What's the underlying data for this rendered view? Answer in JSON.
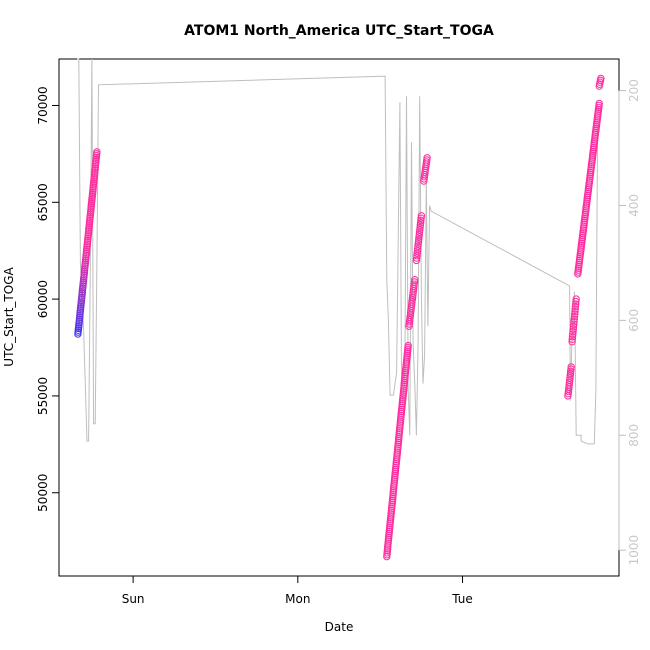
{
  "chart_data": {
    "type": "scatter",
    "title": "ATOM1 North_America UTC_Start_TOGA",
    "xlabel": "Date",
    "ylabel": "UTC_Start_TOGA",
    "x_ticks": [
      "Sun",
      "Mon",
      "Tue"
    ],
    "y_ticks": [
      50000,
      55000,
      60000,
      65000,
      70000
    ],
    "right_ticks": [
      200,
      400,
      600,
      800,
      1000
    ],
    "x_range_days": [
      -0.45,
      2.95
    ],
    "ylim": [
      45700,
      72400
    ],
    "right_ylim": [
      1045,
      145
    ],
    "color_start": "#3f35ee",
    "color_end": "#ff2ea0",
    "right_line_color": "#bebebe",
    "points": [
      {
        "x0": -0.335,
        "y0": 58200,
        "x1": -0.22,
        "y1": 67600,
        "n": 100
      },
      {
        "x0": 1.54,
        "y0": 46700,
        "x1": 1.67,
        "y1": 57600,
        "n": 110
      },
      {
        "x0": 1.675,
        "y0": 58600,
        "x1": 1.71,
        "y1": 61000,
        "n": 22
      },
      {
        "x0": 1.72,
        "y0": 62000,
        "x1": 1.75,
        "y1": 64300,
        "n": 20
      },
      {
        "x0": 1.765,
        "y0": 66100,
        "x1": 1.785,
        "y1": 67300,
        "n": 12
      },
      {
        "x0": 2.64,
        "y0": 55000,
        "x1": 2.66,
        "y1": 56500,
        "n": 14
      },
      {
        "x0": 2.665,
        "y0": 57800,
        "x1": 2.69,
        "y1": 60000,
        "n": 18
      },
      {
        "x0": 2.7,
        "y0": 61300,
        "x1": 2.83,
        "y1": 70100,
        "n": 90
      },
      {
        "x0": 2.83,
        "y0": 71000,
        "x1": 2.84,
        "y1": 71400,
        "n": 5
      }
    ],
    "right_series": {
      "x": [
        -0.34,
        -0.33,
        -0.32,
        -0.3,
        -0.28,
        -0.27,
        -0.26,
        -0.25,
        -0.24,
        -0.23,
        -0.22,
        -0.21,
        -0.21,
        1.53,
        1.54,
        1.55,
        1.56,
        1.58,
        1.6,
        1.62,
        1.63,
        1.64,
        1.65,
        1.66,
        1.67,
        1.68,
        1.69,
        1.7,
        1.71,
        1.72,
        1.73,
        1.74,
        1.75,
        1.76,
        1.77,
        1.78,
        1.79,
        1.8,
        1.81,
        2.65,
        2.655,
        2.66,
        2.67,
        2.68,
        2.69,
        2.7,
        2.72,
        2.72,
        2.76,
        2.77,
        2.79,
        2.8,
        2.81,
        2.82
      ],
      "y": [
        130,
        130,
        500,
        620,
        810,
        810,
        510,
        130,
        780,
        780,
        500,
        190,
        190,
        175,
        530,
        600,
        730,
        730,
        690,
        220,
        720,
        740,
        680,
        210,
        720,
        800,
        290,
        640,
        710,
        800,
        640,
        210,
        560,
        710,
        660,
        360,
        610,
        400,
        410,
        540,
        740,
        680,
        580,
        550,
        800,
        800,
        800,
        810,
        815,
        815,
        815,
        815,
        720,
        260
      ]
    }
  }
}
